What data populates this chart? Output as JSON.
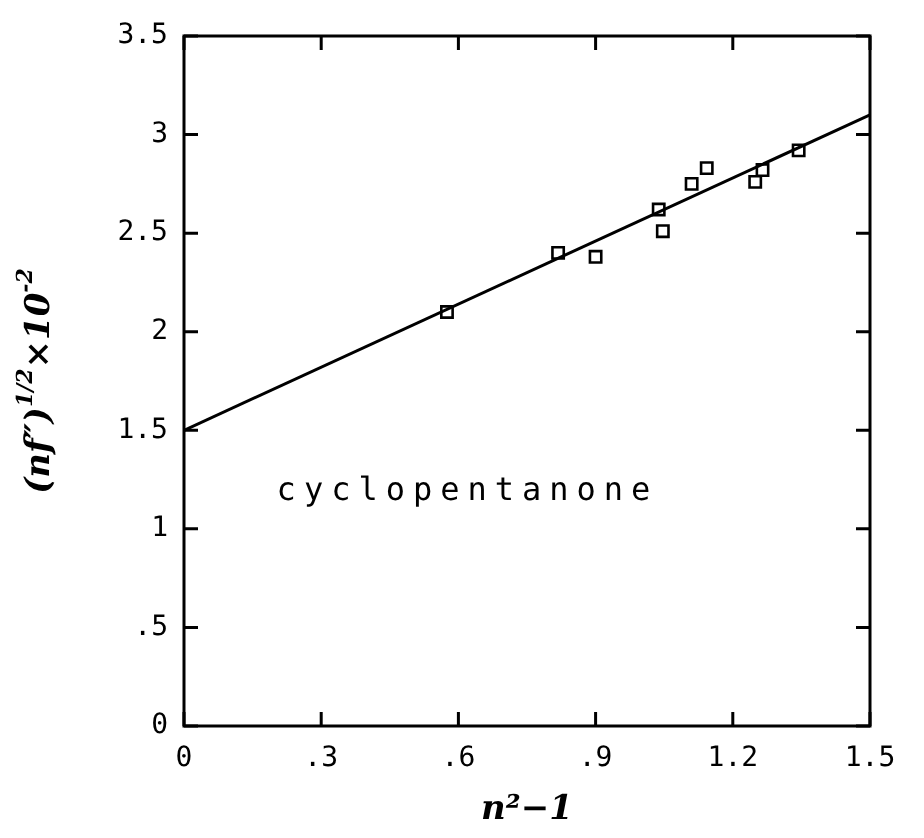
{
  "chart_data": {
    "type": "scatter",
    "xlabel": "n²−1",
    "ylabel": "(nf″)$^{1/2}$×10$^{-2}$",
    "annotations": [
      "cyclopentanone"
    ],
    "xlim": [
      0,
      1.5
    ],
    "xticks": [
      0,
      {
        "value": 0.3,
        "label": ".3"
      },
      {
        "value": 0.6,
        "label": ".6"
      },
      {
        "value": 0.9,
        "label": ".9"
      },
      1.2,
      1.5
    ],
    "ylim": [
      0,
      3.5
    ],
    "yticks": [
      0,
      {
        "value": 0.5,
        "label": ".5"
      },
      1,
      1.5,
      2,
      2.5,
      3,
      3.5
    ],
    "grid": false,
    "legend": false,
    "marker": "square",
    "series": [
      {
        "color": "#000000",
        "x": [
          0.575,
          0.818,
          0.9,
          1.038,
          1.047,
          1.11,
          1.143,
          1.249,
          1.265,
          1.344
        ],
        "values": [
          2.1,
          2.4,
          2.38,
          2.62,
          2.51,
          2.75,
          2.83,
          2.76,
          2.82,
          2.92
        ]
      },
      {
        "type": "line",
        "color": "#000000",
        "x": [
          0,
          1.5
        ],
        "values": [
          1.5,
          3.1
        ],
        "marker": "none",
        "line_style": "solid"
      }
    ]
  }
}
